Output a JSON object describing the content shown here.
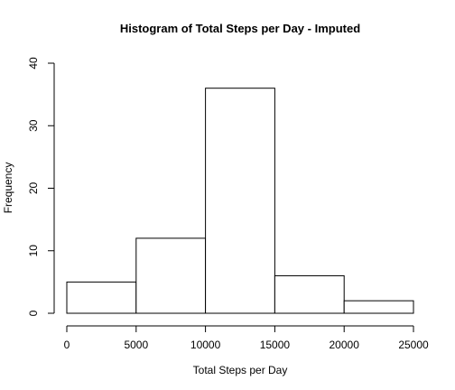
{
  "chart_data": {
    "type": "bar",
    "title": "Histogram of Total Steps per Day - Imputed",
    "xlabel": "Total Steps per Day",
    "ylabel": "Frequency",
    "bins": [
      {
        "from": 0,
        "to": 5000,
        "value": 5
      },
      {
        "from": 5000,
        "to": 10000,
        "value": 12
      },
      {
        "from": 10000,
        "to": 15000,
        "value": 36
      },
      {
        "from": 15000,
        "to": 20000,
        "value": 6
      },
      {
        "from": 20000,
        "to": 25000,
        "value": 2
      }
    ],
    "xlim": [
      0,
      25000
    ],
    "ylim": [
      0,
      40
    ],
    "x_ticks": [
      "0",
      "5000",
      "10000",
      "15000",
      "20000",
      "25000"
    ],
    "y_ticks": [
      "0",
      "10",
      "20",
      "30",
      "40"
    ],
    "grid": false,
    "bar_fill": "#ffffff",
    "bar_stroke": "#000000"
  }
}
